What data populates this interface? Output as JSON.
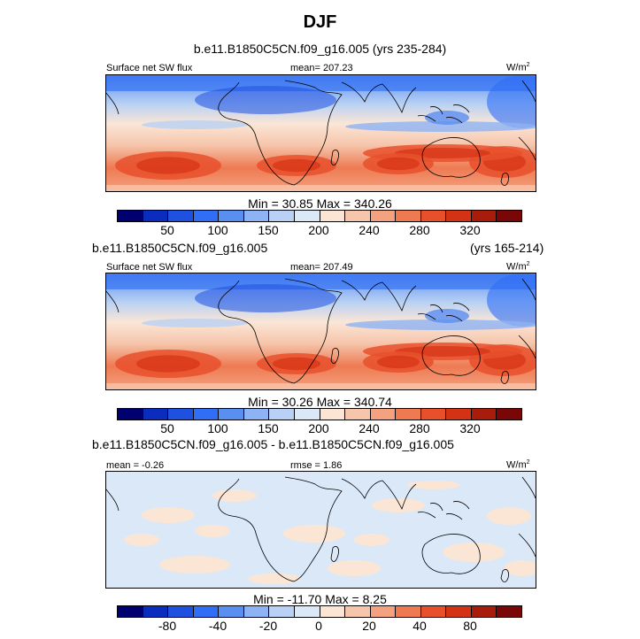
{
  "figure_title": "DJF",
  "chart_data": [
    {
      "type": "heatmap",
      "title": "b.e11.B1850C5CN.f09_g16.005 (yrs 235-284)",
      "variable": "Surface net SW flux",
      "mean_label": "mean= 207.23",
      "units": "W/m",
      "units_sup": "2",
      "minmax_label": "Min =  30.85 Max = 340.26",
      "min": 30.85,
      "max": 340.26,
      "mean": 207.23,
      "colorbar_ticks": [
        "50",
        "100",
        "150",
        "200",
        "240",
        "280",
        "320"
      ],
      "colorbar_levels": [
        25,
        50,
        75,
        100,
        125,
        150,
        175,
        200,
        220,
        240,
        260,
        280,
        300,
        320,
        340
      ]
    },
    {
      "type": "heatmap",
      "title": "b.e11.B1850C5CN.f09_g16.005",
      "title_right": "(yrs 165-214)",
      "variable": "Surface net SW flux",
      "mean_label": "mean= 207.49",
      "units": "W/m",
      "units_sup": "2",
      "minmax_label": "Min =  30.26 Max = 340.74",
      "min": 30.26,
      "max": 340.74,
      "mean": 207.49,
      "colorbar_ticks": [
        "50",
        "100",
        "150",
        "200",
        "240",
        "280",
        "320"
      ],
      "colorbar_levels": [
        25,
        50,
        75,
        100,
        125,
        150,
        175,
        200,
        220,
        240,
        260,
        280,
        300,
        320,
        340
      ]
    },
    {
      "type": "heatmap",
      "title": "b.e11.B1850C5CN.f09_g16.005 - b.e11.B1850C5CN.f09_g16.005",
      "mean_label": "mean =  -0.26",
      "rmse_label": "rmse =   1.86",
      "units": "W/m",
      "units_sup": "2",
      "minmax_label": "Min = -11.70 Max =   8.25",
      "min": -11.7,
      "max": 8.25,
      "mean": -0.26,
      "rmse": 1.86,
      "colorbar_ticks": [
        "-80",
        "-40",
        "-20",
        "0",
        "20",
        "40",
        "80"
      ],
      "colorbar_levels": [
        -100,
        -80,
        -60,
        -40,
        -30,
        -20,
        -10,
        0,
        10,
        20,
        30,
        40,
        60,
        80,
        100
      ]
    }
  ],
  "colors": {
    "palette": [
      "#000070",
      "#0b2dbe",
      "#1e51e0",
      "#2f6ef5",
      "#5a8ff2",
      "#8db3f4",
      "#b9d1f4",
      "#dbe8f8",
      "#fbe6d6",
      "#f6c6ac",
      "#f3a17e",
      "#ee7a52",
      "#e8502c",
      "#d43214",
      "#a81c0c",
      "#7a0606"
    ]
  }
}
